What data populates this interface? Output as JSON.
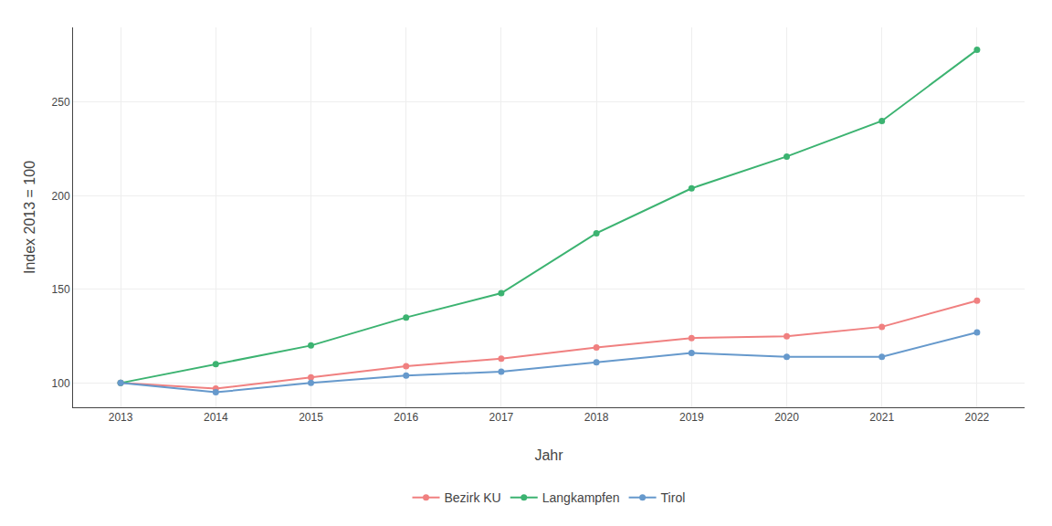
{
  "chart_data": {
    "type": "line",
    "x": [
      2013,
      2014,
      2015,
      2016,
      2017,
      2018,
      2019,
      2020,
      2021,
      2022
    ],
    "series": [
      {
        "name": "Bezirk KU",
        "color": "#F08080",
        "marker": "circle",
        "values": [
          100,
          97,
          103,
          109,
          113,
          119,
          124,
          125,
          130,
          144
        ]
      },
      {
        "name": "Langkampfen",
        "color": "#3CB371",
        "marker": "circle",
        "values": [
          100,
          110,
          120,
          135,
          148,
          180,
          204,
          221,
          240,
          278
        ]
      },
      {
        "name": "Tirol",
        "color": "#6699CC",
        "marker": "circle",
        "values": [
          100,
          95,
          100,
          104,
          106,
          111,
          116,
          114,
          114,
          127
        ]
      }
    ],
    "xlabel": "Jahr",
    "ylabel": "Index 2013 = 100",
    "xlim": [
      2012.5,
      2022.5
    ],
    "xticks": [
      2013,
      2014,
      2015,
      2016,
      2017,
      2018,
      2019,
      2020,
      2021,
      2022
    ],
    "ylim": [
      87,
      290
    ],
    "yticks": [
      100,
      150,
      200,
      250
    ],
    "grid": true,
    "legend": "bottom"
  }
}
